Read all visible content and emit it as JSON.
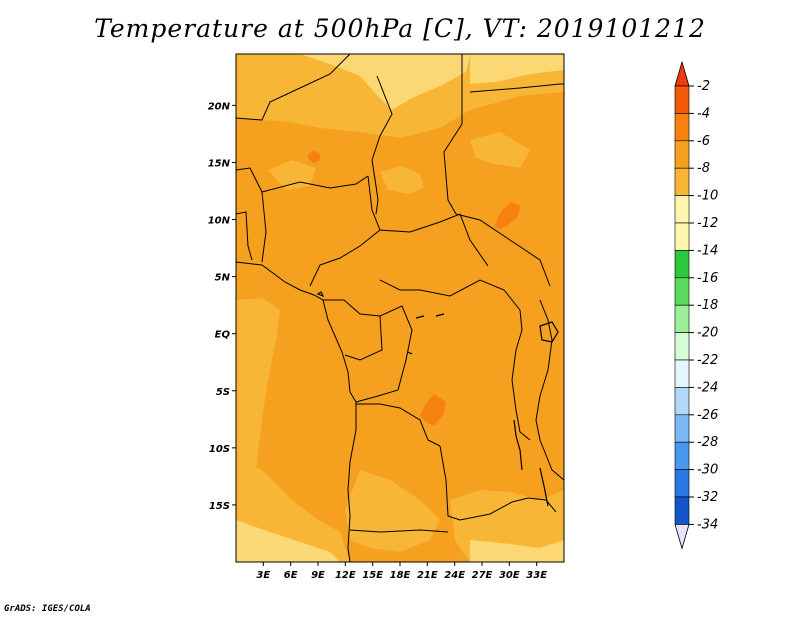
{
  "title": "Temperature at 500hPa [C], VT: 2019101212",
  "footer": "GrADS: IGES/COLA",
  "map": {
    "lon_range": [
      0,
      36
    ],
    "lat_range": [
      -20,
      24.5
    ],
    "lon_ticks": [
      {
        "value": 3,
        "label": "3E"
      },
      {
        "value": 6,
        "label": "6E"
      },
      {
        "value": 9,
        "label": "9E"
      },
      {
        "value": 12,
        "label": "12E"
      },
      {
        "value": 15,
        "label": "15E"
      },
      {
        "value": 18,
        "label": "18E"
      },
      {
        "value": 21,
        "label": "21E"
      },
      {
        "value": 24,
        "label": "24E"
      },
      {
        "value": 27,
        "label": "27E"
      },
      {
        "value": 30,
        "label": "30E"
      },
      {
        "value": 33,
        "label": "33E"
      }
    ],
    "lat_ticks": [
      {
        "value": 20,
        "label": "20N"
      },
      {
        "value": 15,
        "label": "15N"
      },
      {
        "value": 10,
        "label": "10N"
      },
      {
        "value": 5,
        "label": "5N"
      },
      {
        "value": 0,
        "label": "EQ"
      },
      {
        "value": -5,
        "label": "5S"
      },
      {
        "value": -10,
        "label": "10S"
      },
      {
        "value": -15,
        "label": "15S"
      }
    ],
    "dominant_level": "-6 to -4",
    "warm_spots": [
      {
        "name": "chad-warm-spot",
        "lon": 8.5,
        "lat": 15.5,
        "level": "-4 to -2"
      },
      {
        "name": "sudan-warm-spot",
        "lon": 29.5,
        "lat": 10.5,
        "level": "-4 to -2"
      },
      {
        "name": "congo-warm-spot",
        "lon": 21.5,
        "lat": -6.5,
        "level": "-4 to -2"
      }
    ]
  },
  "colorbar": {
    "levels": [
      {
        "label": "-2",
        "color": "#f05a0a"
      },
      {
        "label": "-4",
        "color": "#f5820f"
      },
      {
        "label": "-6",
        "color": "#f5a01e"
      },
      {
        "label": "-8",
        "color": "#f8b636"
      },
      {
        "label": "-10",
        "color": "#fbd874"
      },
      {
        "label": "-12",
        "color": "#fff5ae"
      },
      {
        "label": "-14",
        "color": "#2ec83b"
      },
      {
        "label": "-16",
        "color": "#5ad95a"
      },
      {
        "label": "-18",
        "color": "#9cf097"
      },
      {
        "label": "-20",
        "color": "#d6fcd4"
      },
      {
        "label": "-22",
        "color": "#e4f6fc"
      },
      {
        "label": "-24",
        "color": "#b0d9f8"
      },
      {
        "label": "-26",
        "color": "#7ab8f5"
      },
      {
        "label": "-28",
        "color": "#4998f0"
      },
      {
        "label": "-30",
        "color": "#2a76e3"
      },
      {
        "label": "-32",
        "color": "#1456c8"
      },
      {
        "label": "-34",
        "color": "#0a30a0"
      }
    ],
    "top_color": "#f03c0a",
    "bottom_color": "#0a0a78",
    "beyond_color": "#e6e6fa"
  }
}
